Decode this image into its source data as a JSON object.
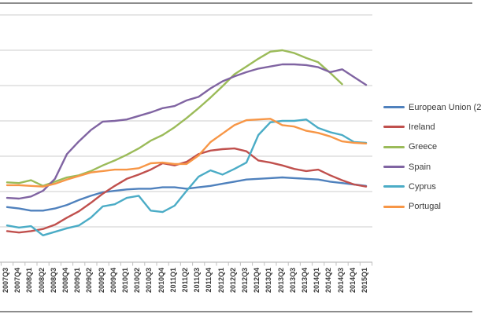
{
  "window": {
    "title": ""
  },
  "frame": {
    "border_color": "#8c8c8c"
  },
  "chart_data": {
    "type": "line",
    "title": "",
    "xlabel": "",
    "ylabel": "",
    "y_axis_labels_visible": false,
    "grid": true,
    "gridline_values": [
      0,
      5,
      10,
      15,
      20,
      25,
      30,
      35
    ],
    "ylim": [
      0,
      36.7
    ],
    "legend_position": "right",
    "x_tick_rotation": 90,
    "grid_color": "#d6d6d6",
    "axis_color": "#bfbfbf",
    "categories": [
      "2007Q3",
      "2007Q4",
      "2008Q1",
      "2008Q2",
      "2008Q3",
      "2008Q4",
      "2009Q1",
      "2009Q2",
      "2009Q3",
      "2009Q4",
      "2010Q1",
      "2010Q2",
      "2010Q3",
      "2010Q4",
      "2011Q1",
      "2011Q2",
      "2011Q3",
      "2011Q4",
      "2012Q1",
      "2012Q2",
      "2012Q3",
      "2012Q4",
      "2013Q1",
      "2013Q2",
      "2013Q3",
      "2013Q4",
      "2014Q1",
      "2014Q2",
      "2014Q3",
      "2014Q4",
      "2015Q1"
    ],
    "series": [
      {
        "key": "european-union",
        "legend_label": "European Union (2",
        "color": "#4f81bd",
        "values": [
          7.8,
          7.6,
          7.3,
          7.3,
          7.6,
          8.1,
          8.8,
          9.4,
          9.9,
          10.1,
          10.3,
          10.4,
          10.4,
          10.6,
          10.6,
          10.4,
          10.6,
          10.8,
          11.1,
          11.4,
          11.7,
          11.8,
          11.9,
          12.0,
          11.9,
          11.8,
          11.7,
          11.4,
          11.2,
          11.0,
          10.8
        ]
      },
      {
        "key": "ireland",
        "legend_label": "Ireland",
        "color": "#c0504d",
        "values": [
          4.4,
          4.2,
          4.4,
          4.7,
          5.3,
          6.3,
          7.2,
          8.4,
          9.7,
          10.8,
          11.8,
          12.4,
          13.1,
          14.0,
          13.7,
          14.2,
          15.3,
          15.8,
          16.0,
          16.1,
          15.7,
          14.4,
          14.1,
          13.7,
          13.2,
          12.9,
          13.1,
          12.3,
          11.6,
          11.0,
          10.7
        ]
      },
      {
        "key": "greece",
        "legend_label": "Greece",
        "color": "#9bbb59",
        "values": [
          11.3,
          11.2,
          11.6,
          10.8,
          11.4,
          12.0,
          12.3,
          12.9,
          13.7,
          14.4,
          15.2,
          16.1,
          17.2,
          18.0,
          19.1,
          20.4,
          21.8,
          23.3,
          24.9,
          26.6,
          27.7,
          28.8,
          29.8,
          30.0,
          29.6,
          28.9,
          28.3,
          26.8,
          25.2,
          null,
          null
        ]
      },
      {
        "key": "spain",
        "legend_label": "Spain",
        "color": "#8064a2",
        "values": [
          9.1,
          9.0,
          9.3,
          10.1,
          11.8,
          15.3,
          17.1,
          18.7,
          19.9,
          20.0,
          20.2,
          20.7,
          21.2,
          21.8,
          22.1,
          22.9,
          23.4,
          24.6,
          25.6,
          26.3,
          26.9,
          27.4,
          27.7,
          28.0,
          28.0,
          27.9,
          27.6,
          26.9,
          27.3,
          26.2,
          25.1
        ]
      },
      {
        "key": "cyprus",
        "legend_label": "Cyprus",
        "color": "#4bacc6",
        "values": [
          5.2,
          4.9,
          5.1,
          3.8,
          4.3,
          4.8,
          5.2,
          6.3,
          7.9,
          8.2,
          9.1,
          9.4,
          7.3,
          7.1,
          8.0,
          10.1,
          12.1,
          13.0,
          12.4,
          13.2,
          14.1,
          18.0,
          19.8,
          20.0,
          20.0,
          20.2,
          19.0,
          18.4,
          18.0,
          17.0,
          16.9
        ]
      },
      {
        "key": "portugal",
        "legend_label": "Portugal",
        "color": "#f79646",
        "values": [
          10.9,
          10.9,
          10.8,
          10.7,
          11.1,
          11.7,
          12.2,
          12.7,
          12.9,
          13.1,
          13.1,
          13.3,
          14.0,
          14.1,
          13.9,
          13.9,
          15.1,
          17.0,
          18.2,
          19.4,
          20.1,
          20.2,
          20.3,
          19.4,
          19.2,
          18.6,
          18.3,
          17.8,
          17.1,
          16.9,
          16.8
        ]
      }
    ]
  }
}
